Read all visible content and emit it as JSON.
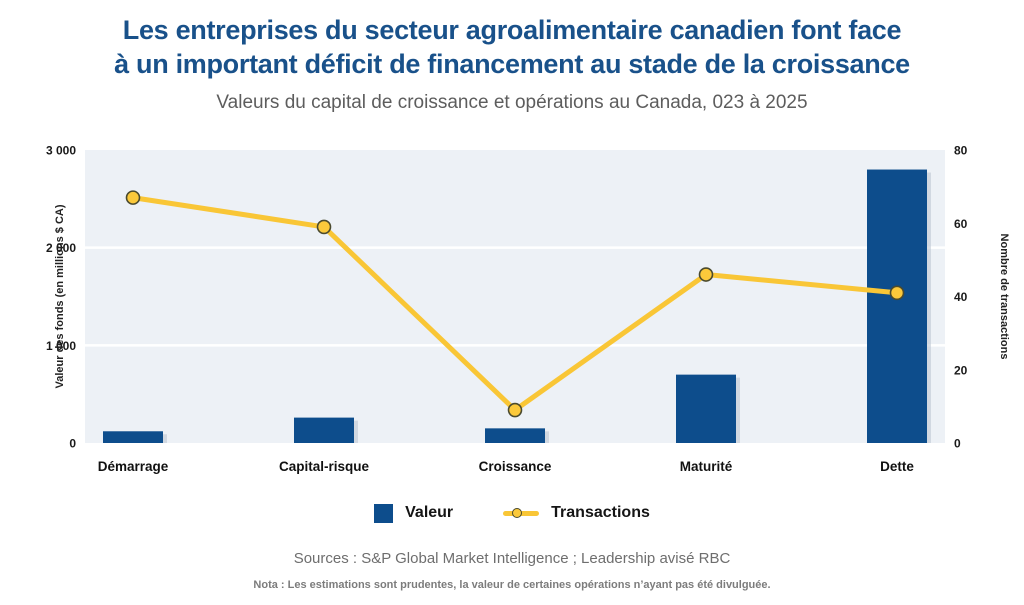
{
  "title": {
    "line1": "Les entreprises du secteur agroalimentaire canadien font face",
    "line2": "à un important déficit de financement au stade de la croissance"
  },
  "subtitle": "Valeurs du capital de croissance et opérations au Canada, 023 à 2025",
  "chart_data": {
    "type": "bar+line combo",
    "categories": [
      "Démarrage",
      "Capital-risque",
      "Croissance",
      "Maturité",
      "Dette"
    ],
    "series": [
      {
        "name": "Valeur",
        "type": "bar",
        "axis": "left",
        "values": [
          120,
          260,
          150,
          700,
          2800
        ]
      },
      {
        "name": "Transactions",
        "type": "line",
        "axis": "right",
        "values": [
          67,
          59,
          9,
          46,
          41
        ]
      }
    ],
    "left_axis": {
      "label": "Valeur des fonds (en millions $ CA)",
      "min": 0,
      "max": 3000,
      "ticks": [
        {
          "label": "3 000",
          "value": 3000
        },
        {
          "label": "2 000",
          "value": 2000
        },
        {
          "label": "1 000",
          "value": 1000
        },
        {
          "label": "0",
          "value": 0
        }
      ]
    },
    "right_axis": {
      "label": "Nombre de transactions",
      "min": 0,
      "max": 80,
      "ticks": [
        {
          "label": "80",
          "value": 80
        },
        {
          "label": "60",
          "value": 60
        },
        {
          "label": "40",
          "value": 40
        },
        {
          "label": "20",
          "value": 20
        },
        {
          "label": "0",
          "value": 0
        }
      ]
    },
    "gridline_values_left_axis": [
      2000,
      1000
    ],
    "legend_position": "bottom"
  },
  "legend": {
    "items": [
      {
        "label": "Valeur",
        "swatch": "square",
        "color": "#0d4d8c"
      },
      {
        "label": "Transactions",
        "swatch": "line-dot",
        "color": "#f9c636"
      }
    ]
  },
  "footer": {
    "sources": "Sources : S&P Global Market Intelligence ; Leadership avisé RBC",
    "note": "Nota : Les estimations sont prudentes, la valeur de certaines opérations n’ayant pas été divulguée."
  },
  "colors": {
    "title_blue": "#19518a",
    "bar_blue": "#0d4d8c",
    "bar_shadow": "#b9c2cf",
    "line_yellow": "#f9c636",
    "marker_fill": "#fbc93b",
    "marker_stroke": "#4a4a2e",
    "plot_background": "#edf1f6",
    "gridline": "#ffffff"
  }
}
